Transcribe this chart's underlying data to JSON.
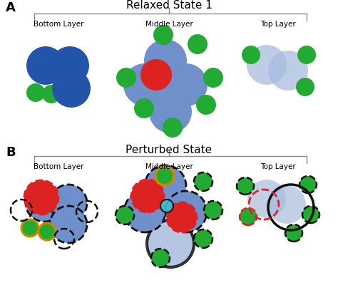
{
  "colors": {
    "blue_dark": "#2255aa",
    "blue_mid": "#7090cc",
    "blue_light": "#a8bcde",
    "green": "#22aa33",
    "red": "#dd2222",
    "cyan": "#44bbcc",
    "orange": "#cc8800",
    "black": "#111111",
    "gray": "#888888",
    "white": "#ffffff"
  },
  "background": "#ffffff",
  "title_A": "Relaxed State 1",
  "title_B": "Perturbed State",
  "label_A": "A",
  "label_B": "B"
}
